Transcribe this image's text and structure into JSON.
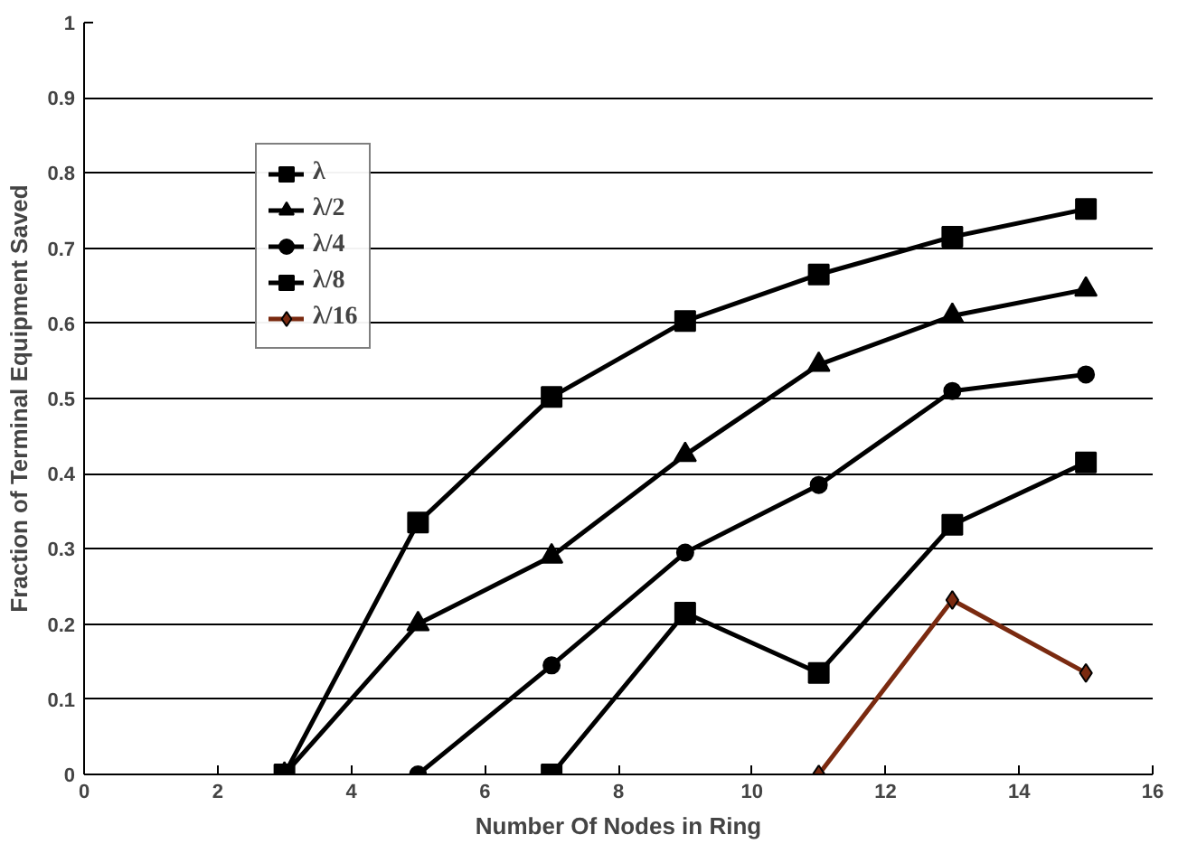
{
  "chart_data": {
    "type": "line",
    "xlabel": "Number Of Nodes in Ring",
    "ylabel": "Fraction of Terminal Equipment Saved",
    "x": [
      3,
      5,
      7,
      9,
      11,
      13,
      15
    ],
    "series": [
      {
        "name": "λ",
        "color": "#000000",
        "marker": "square",
        "values": [
          0,
          0.335,
          0.502,
          0.603,
          0.665,
          0.715,
          0.752
        ]
      },
      {
        "name": "λ/2",
        "color": "#000000",
        "marker": "triangle",
        "values": [
          0,
          0.2,
          0.29,
          0.425,
          0.545,
          0.61,
          0.645
        ]
      },
      {
        "name": "λ/4",
        "color": "#000000",
        "marker": "circle",
        "x": [
          5,
          7,
          9,
          11,
          13,
          15
        ],
        "values": [
          0,
          0.145,
          0.295,
          0.385,
          0.51,
          0.532
        ]
      },
      {
        "name": "λ/8",
        "color": "#000000",
        "marker": "square",
        "x": [
          7,
          9,
          11,
          13,
          15
        ],
        "values": [
          0,
          0.215,
          0.135,
          0.332,
          0.415
        ]
      },
      {
        "name": "λ/16",
        "color": "#7a2a10",
        "marker": "diamond",
        "x": [
          11,
          13,
          15
        ],
        "values": [
          0,
          0.232,
          0.135
        ]
      }
    ],
    "xlim": [
      0,
      16
    ],
    "xticks": [
      0,
      2,
      4,
      6,
      8,
      10,
      12,
      14,
      16
    ],
    "ylim": [
      0,
      1
    ],
    "yticks": [
      0,
      0.1,
      0.2,
      0.3,
      0.4,
      0.5,
      0.6,
      0.7,
      0.8,
      0.9,
      1
    ],
    "grid": "y",
    "legend": "top left"
  }
}
